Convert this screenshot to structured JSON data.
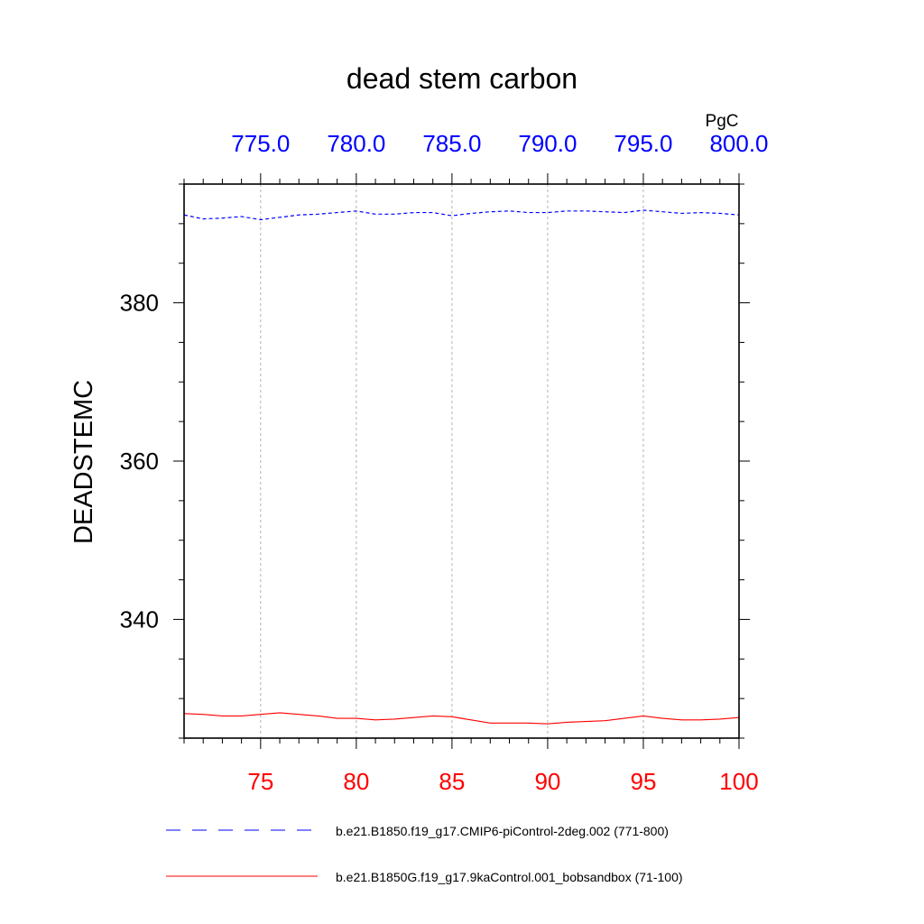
{
  "chart_data": {
    "type": "line",
    "title": "dead stem carbon",
    "ylabel": "DEADSTEMC",
    "units": "PgC",
    "ylim": [
      325,
      395
    ],
    "yticks": [
      340,
      360,
      380
    ],
    "grid": "vertical dashed lines at major x ticks",
    "x_bottom": {
      "range": [
        71,
        100
      ],
      "ticks": [
        75,
        80,
        85,
        90,
        95,
        100
      ],
      "tick_labels": [
        "75",
        "80",
        "85",
        "90",
        "95",
        "100"
      ],
      "color": "#ff0000"
    },
    "x_top": {
      "range": [
        771,
        800
      ],
      "ticks": [
        775,
        780,
        785,
        790,
        795,
        800
      ],
      "tick_labels": [
        "775.0",
        "780.0",
        "785.0",
        "790.0",
        "795.0",
        "800.0"
      ],
      "color": "#0000ff"
    },
    "legend_position": "bottom",
    "series": [
      {
        "name": "b.e21.B1850.f19_g17.CMIP6-piControl-2deg.002 (771-800)",
        "axis": "top",
        "color": "#0000ff",
        "dash": "dashed",
        "x": [
          771,
          772,
          773,
          774,
          775,
          776,
          777,
          778,
          779,
          780,
          781,
          782,
          783,
          784,
          785,
          786,
          787,
          788,
          789,
          790,
          791,
          792,
          793,
          794,
          795,
          796,
          797,
          798,
          799,
          800
        ],
        "values": [
          391.1,
          390.6,
          390.7,
          390.9,
          390.5,
          390.8,
          391.1,
          391.2,
          391.4,
          391.6,
          391.2,
          391.2,
          391.4,
          391.4,
          391.0,
          391.3,
          391.5,
          391.6,
          391.4,
          391.4,
          391.6,
          391.6,
          391.5,
          391.4,
          391.7,
          391.5,
          391.3,
          391.4,
          391.3,
          391.1
        ]
      },
      {
        "name": "b.e21.B1850G.f19_g17.9kaControl.001_bobsandbox (71-100)",
        "axis": "bottom",
        "color": "#ff0000",
        "dash": "solid",
        "x": [
          71,
          72,
          73,
          74,
          75,
          76,
          77,
          78,
          79,
          80,
          81,
          82,
          83,
          84,
          85,
          86,
          87,
          88,
          89,
          90,
          91,
          92,
          93,
          94,
          95,
          96,
          97,
          98,
          99,
          100
        ],
        "values": [
          328.1,
          328.0,
          327.8,
          327.8,
          328.0,
          328.2,
          328.0,
          327.8,
          327.5,
          327.5,
          327.3,
          327.4,
          327.6,
          327.8,
          327.7,
          327.3,
          326.9,
          326.9,
          326.9,
          326.8,
          327.0,
          327.1,
          327.2,
          327.5,
          327.8,
          327.5,
          327.3,
          327.3,
          327.4,
          327.6
        ]
      }
    ]
  }
}
